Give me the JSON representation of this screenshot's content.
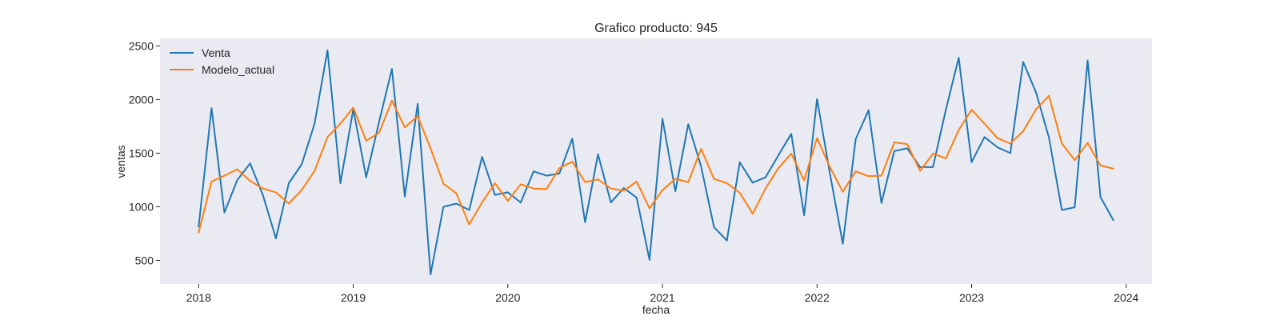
{
  "chart_data": {
    "type": "line",
    "title": "Grafico producto: 945",
    "xlabel": "fecha",
    "ylabel": "ventas",
    "x_start": "2018-01",
    "frequency": "monthly",
    "xlim": [
      "2017-10",
      "2024-03"
    ],
    "ylim": [
      280,
      2570
    ],
    "x_ticks": [
      "2018",
      "2019",
      "2020",
      "2021",
      "2022",
      "2023",
      "2024"
    ],
    "y_ticks": [
      500,
      1000,
      1500,
      2000,
      2500
    ],
    "grid": false,
    "legend_position": "top-left",
    "series": [
      {
        "name": "Venta",
        "color": "#1f77b4",
        "values": [
          815,
          1920,
          945,
          1250,
          1405,
          1105,
          705,
          1220,
          1395,
          1775,
          2460,
          1220,
          1910,
          1275,
          1790,
          2285,
          1095,
          1960,
          370,
          1000,
          1030,
          970,
          1465,
          1110,
          1135,
          1040,
          1330,
          1290,
          1310,
          1635,
          855,
          1490,
          1040,
          1175,
          1085,
          505,
          1820,
          1145,
          1770,
          1375,
          810,
          685,
          1415,
          1225,
          1275,
          1480,
          1680,
          920,
          2005,
          1310,
          655,
          1630,
          1900,
          1035,
          1520,
          1545,
          1370,
          1370,
          1905,
          2390,
          1415,
          1650,
          1555,
          1500,
          2350,
          2065,
          1645,
          970,
          995,
          2365,
          1090,
          875
        ]
      },
      {
        "name": "Modelo_actual",
        "color": "#ff7f0e",
        "values": [
          760,
          1235,
          1290,
          1350,
          1240,
          1170,
          1135,
          1030,
          1155,
          1335,
          1650,
          1775,
          1925,
          1615,
          1690,
          1990,
          1740,
          1845,
          1545,
          1215,
          1125,
          835,
          1040,
          1220,
          1055,
          1210,
          1170,
          1165,
          1360,
          1420,
          1230,
          1255,
          1170,
          1150,
          1235,
          985,
          1155,
          1260,
          1230,
          1540,
          1260,
          1220,
          1130,
          935,
          1170,
          1360,
          1495,
          1245,
          1640,
          1370,
          1140,
          1330,
          1285,
          1290,
          1600,
          1585,
          1335,
          1495,
          1450,
          1715,
          1905,
          1775,
          1640,
          1590,
          1705,
          1910,
          2035,
          1590,
          1435,
          1595,
          1385,
          1355
        ]
      }
    ]
  }
}
